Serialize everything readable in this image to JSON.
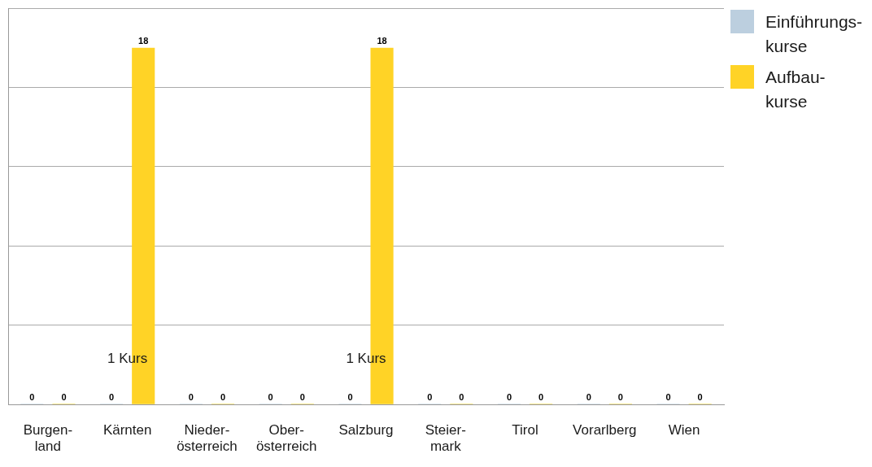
{
  "chart_data": {
    "type": "bar",
    "categories": [
      "Burgen-land",
      "Kärnten",
      "Nieder-österreich",
      "Ober-österreich",
      "Salzburg",
      "Steier-mark",
      "Tirol",
      "Vorarlberg",
      "Wien"
    ],
    "series": [
      {
        "name": "Einführungs-kurse",
        "color": "#bccfdf",
        "values": [
          0,
          0,
          0,
          0,
          0,
          0,
          0,
          0,
          0
        ]
      },
      {
        "name": "Aufbau-kurse",
        "color": "#ffd326",
        "values": [
          0,
          18,
          0,
          0,
          18,
          0,
          0,
          0,
          0
        ]
      }
    ],
    "ylim": [
      0,
      20
    ],
    "yticks": [
      {
        "value": 0,
        "label": null
      },
      {
        "value": 4,
        "label": null
      },
      {
        "value": 8,
        "label": null
      },
      {
        "value": 12,
        "label": null
      },
      {
        "value": 16,
        "label": null
      },
      {
        "value": 20,
        "label": null
      }
    ],
    "grid": "y",
    "tick_labels": "x",
    "data_labels": true,
    "legend": "top right",
    "annotations": [
      "1 Kurs",
      "1 Kurs"
    ]
  }
}
